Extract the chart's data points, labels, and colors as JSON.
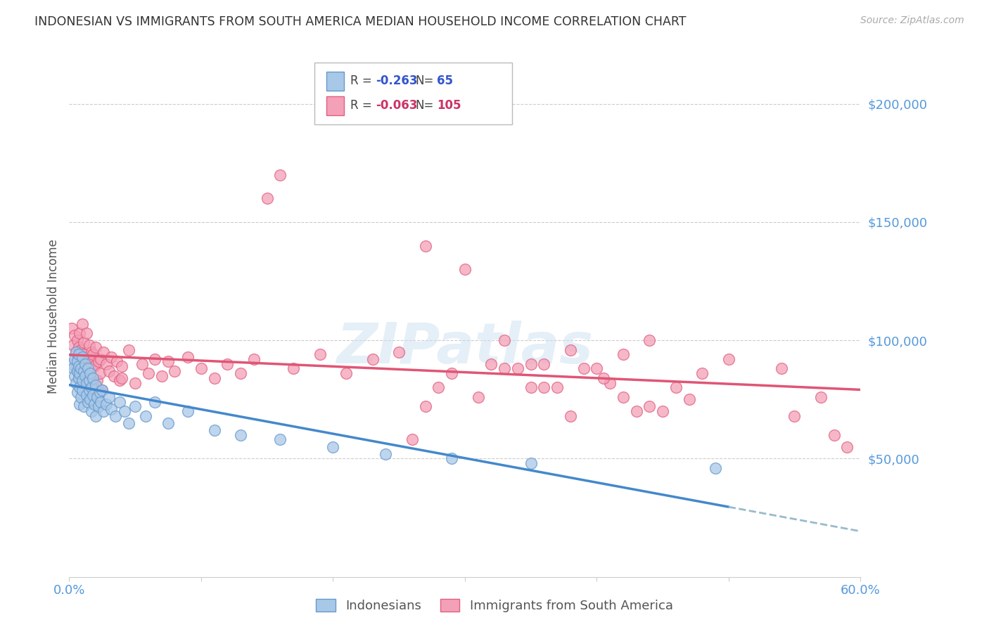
{
  "title": "INDONESIAN VS IMMIGRANTS FROM SOUTH AMERICA MEDIAN HOUSEHOLD INCOME CORRELATION CHART",
  "source": "Source: ZipAtlas.com",
  "ylabel": "Median Household Income",
  "xmin": 0.0,
  "xmax": 0.6,
  "ymin": 0,
  "ymax": 220000,
  "indonesian_color": "#a8c8e8",
  "south_america_color": "#f4a0b8",
  "indonesian_edge": "#6699cc",
  "south_america_edge": "#e06080",
  "trend_blue": "#4488cc",
  "trend_pink": "#e05575",
  "trend_dashed": "#99bbcc",
  "r_indonesian": "-0.263",
  "n_indonesian": "65",
  "r_south_america": "-0.063",
  "n_south_america": "105",
  "legend_label_1": "Indonesians",
  "legend_label_2": "Immigrants from South America",
  "watermark": "ZIPatlas",
  "axis_color": "#5599dd",
  "background_color": "#ffffff",
  "indonesian_x": [
    0.002,
    0.003,
    0.004,
    0.004,
    0.005,
    0.005,
    0.006,
    0.006,
    0.006,
    0.007,
    0.007,
    0.007,
    0.008,
    0.008,
    0.008,
    0.009,
    0.009,
    0.01,
    0.01,
    0.01,
    0.011,
    0.011,
    0.012,
    0.012,
    0.013,
    0.013,
    0.014,
    0.014,
    0.015,
    0.015,
    0.016,
    0.016,
    0.017,
    0.017,
    0.018,
    0.018,
    0.019,
    0.02,
    0.02,
    0.021,
    0.022,
    0.023,
    0.024,
    0.025,
    0.026,
    0.028,
    0.03,
    0.032,
    0.035,
    0.038,
    0.042,
    0.045,
    0.05,
    0.058,
    0.065,
    0.075,
    0.09,
    0.11,
    0.13,
    0.16,
    0.2,
    0.24,
    0.29,
    0.35,
    0.49
  ],
  "indonesian_y": [
    90000,
    88000,
    92000,
    85000,
    95000,
    82000,
    87000,
    91000,
    78000,
    84000,
    89000,
    94000,
    80000,
    86000,
    73000,
    88000,
    76000,
    93000,
    79000,
    83000,
    87000,
    72000,
    85000,
    90000,
    77000,
    82000,
    88000,
    74000,
    83000,
    79000,
    86000,
    75000,
    80000,
    70000,
    84000,
    77000,
    73000,
    81000,
    68000,
    76000,
    72000,
    78000,
    74000,
    79000,
    70000,
    73000,
    76000,
    71000,
    68000,
    74000,
    70000,
    65000,
    72000,
    68000,
    74000,
    65000,
    70000,
    62000,
    60000,
    58000,
    55000,
    52000,
    50000,
    48000,
    46000
  ],
  "south_america_x": [
    0.002,
    0.003,
    0.004,
    0.005,
    0.005,
    0.006,
    0.006,
    0.007,
    0.007,
    0.008,
    0.008,
    0.009,
    0.009,
    0.01,
    0.01,
    0.011,
    0.011,
    0.012,
    0.012,
    0.013,
    0.013,
    0.014,
    0.014,
    0.015,
    0.015,
    0.016,
    0.016,
    0.017,
    0.017,
    0.018,
    0.018,
    0.019,
    0.02,
    0.021,
    0.022,
    0.023,
    0.024,
    0.025,
    0.026,
    0.028,
    0.03,
    0.032,
    0.034,
    0.036,
    0.038,
    0.04,
    0.045,
    0.05,
    0.055,
    0.06,
    0.065,
    0.07,
    0.075,
    0.08,
    0.09,
    0.1,
    0.11,
    0.12,
    0.13,
    0.14,
    0.15,
    0.16,
    0.17,
    0.19,
    0.21,
    0.23,
    0.25,
    0.27,
    0.3,
    0.33,
    0.35,
    0.38,
    0.4,
    0.42,
    0.44,
    0.46,
    0.48,
    0.5,
    0.54,
    0.57,
    0.04,
    0.32,
    0.29,
    0.36,
    0.41,
    0.45,
    0.38,
    0.26,
    0.34,
    0.28,
    0.31,
    0.43,
    0.47,
    0.39,
    0.27,
    0.35,
    0.42,
    0.55,
    0.58,
    0.59,
    0.33,
    0.37,
    0.405,
    0.36,
    0.44
  ],
  "south_america_y": [
    105000,
    98000,
    102000,
    95000,
    88000,
    100000,
    92000,
    97000,
    85000,
    103000,
    90000,
    96000,
    82000,
    107000,
    88000,
    94000,
    99000,
    85000,
    91000,
    103000,
    87000,
    93000,
    80000,
    98000,
    86000,
    92000,
    78000,
    95000,
    88000,
    94000,
    82000,
    89000,
    97000,
    83000,
    91000,
    86000,
    92000,
    79000,
    95000,
    90000,
    87000,
    93000,
    85000,
    91000,
    83000,
    89000,
    96000,
    82000,
    90000,
    86000,
    92000,
    85000,
    91000,
    87000,
    93000,
    88000,
    84000,
    90000,
    86000,
    92000,
    160000,
    170000,
    88000,
    94000,
    86000,
    92000,
    95000,
    140000,
    130000,
    100000,
    90000,
    96000,
    88000,
    94000,
    100000,
    80000,
    86000,
    92000,
    88000,
    76000,
    84000,
    90000,
    86000,
    80000,
    82000,
    70000,
    68000,
    58000,
    88000,
    80000,
    76000,
    70000,
    75000,
    88000,
    72000,
    80000,
    76000,
    68000,
    60000,
    55000,
    88000,
    80000,
    84000,
    90000,
    72000
  ]
}
